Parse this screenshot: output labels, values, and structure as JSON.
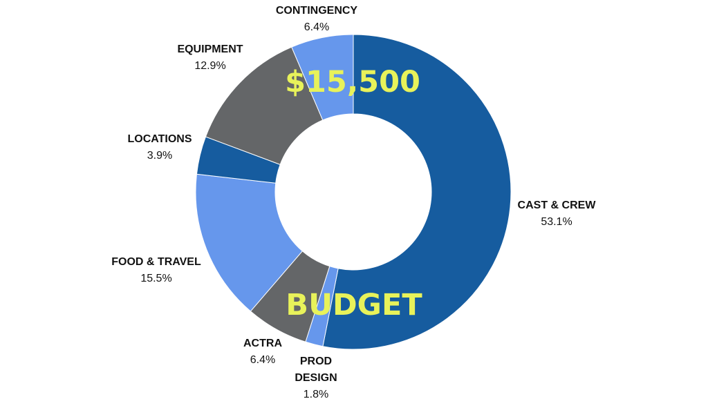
{
  "chart_data": {
    "type": "pie",
    "style": "donut",
    "title": "$15,500",
    "subtitle": "BUDGET",
    "slices": [
      {
        "label": "CAST & CREW",
        "value": 53.1,
        "value_text": "53.1%",
        "color": "#165c9f"
      },
      {
        "label": "PROD DESIGN",
        "value": 1.8,
        "value_text": "1.8%",
        "color": "#6697ec"
      },
      {
        "label": "ACTRA",
        "value": 6.4,
        "value_text": "6.4%",
        "color": "#646668"
      },
      {
        "label": "FOOD & TRAVEL",
        "value": 15.5,
        "value_text": "15.5%",
        "color": "#6697ec"
      },
      {
        "label": "LOCATIONS",
        "value": 3.9,
        "value_text": "3.9%",
        "color": "#165c9f"
      },
      {
        "label": "EQUIPMENT",
        "value": 12.9,
        "value_text": "12.9%",
        "color": "#646668"
      },
      {
        "label": "CONTINGENCY",
        "value": 6.4,
        "value_text": "6.4%",
        "color": "#6697ec"
      }
    ]
  }
}
